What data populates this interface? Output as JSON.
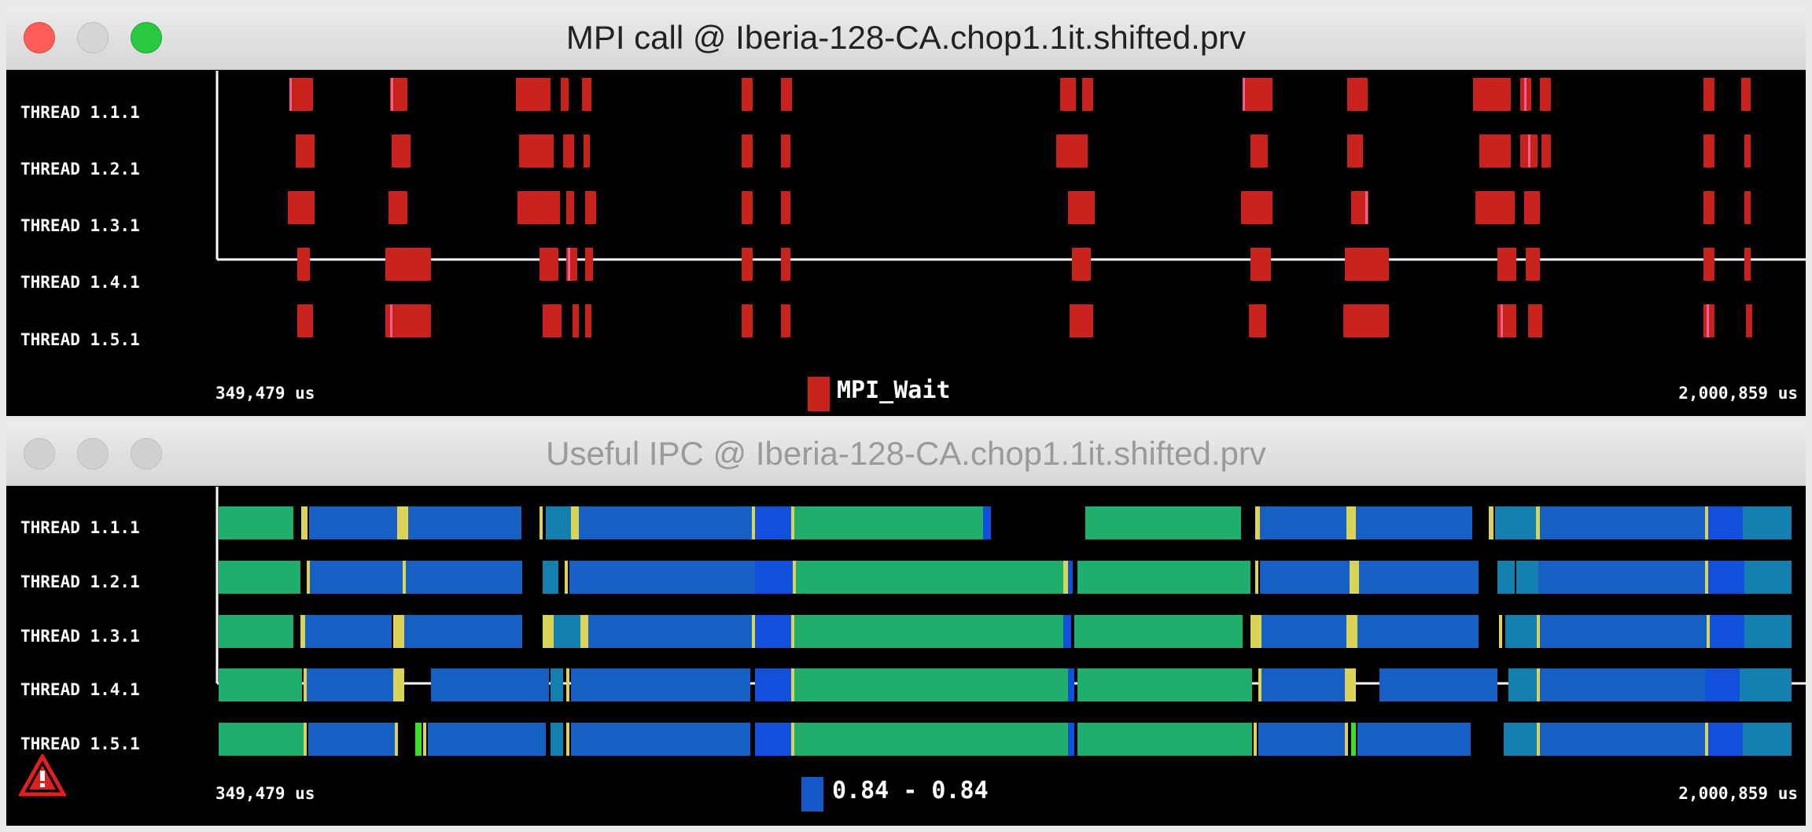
{
  "windows": [
    {
      "title": "MPI call @ Iberia-128-CA.chop1.1it.shifted.prv",
      "active": true,
      "rows": [
        "THREAD 1.1.1",
        "THREAD 1.2.1",
        "THREAD 1.3.1",
        "THREAD 1.4.1",
        "THREAD 1.5.1"
      ],
      "time_start": "349,479 us",
      "time_end": "2,000,859 us",
      "legend_label": "MPI_Wait",
      "legend_color": "#c7221b"
    },
    {
      "title": "Useful IPC @ Iberia-128-CA.chop1.1it.shifted.prv",
      "active": false,
      "rows": [
        "THREAD 1.1.1",
        "THREAD 1.2.1",
        "THREAD 1.3.1",
        "THREAD 1.4.1",
        "THREAD 1.5.1"
      ],
      "time_start": "349,479 us",
      "time_end": "2,000,859 us",
      "legend_label": "0.84 - 0.84",
      "legend_color": "#1558c8"
    }
  ],
  "icons": {
    "warning": "warning-icon"
  },
  "colors": {
    "mpi_wait": "#c7221b",
    "mpi_accent": "#f06090",
    "ipc_green": "#1fae6c",
    "ipc_blue": "#1560c2",
    "ipc_bright_blue": "#1150dc",
    "ipc_teal": "#1380b0",
    "ipc_yellow": "#d9d35a",
    "ipc_lime": "#39e02a"
  }
}
